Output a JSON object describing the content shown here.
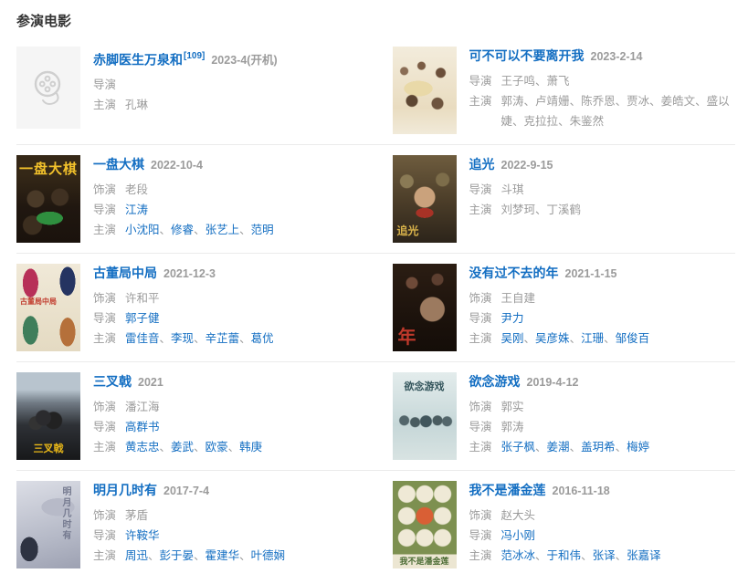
{
  "page": {
    "title": "参演电影"
  },
  "colors": {
    "link": "#136ec2",
    "muted": "#9b9b9b",
    "heading": "#333333",
    "divider": "#ebebeb"
  },
  "separator": "、",
  "icons": {
    "placeholder_poster": "film-reel-icon"
  },
  "movies": [
    {
      "title": "赤脚医生万泉和",
      "ref": "[109]",
      "date": "2023-4(开机)",
      "poster": "placeholder",
      "poster_text": "",
      "credits": [
        {
          "label": "导演",
          "names": []
        },
        {
          "label": "主演",
          "names": [
            {
              "text": "孔琳",
              "link": false
            }
          ]
        }
      ]
    },
    {
      "title": "可不可以不要离开我",
      "ref": "",
      "date": "2023-2-14",
      "poster": "knbly",
      "poster_text": "",
      "credits": [
        {
          "label": "导演",
          "names": [
            {
              "text": "王子鸣",
              "link": false
            },
            {
              "text": "萧飞",
              "link": false
            }
          ]
        },
        {
          "label": "主演",
          "names": [
            {
              "text": "郭涛",
              "link": false
            },
            {
              "text": "卢靖姗",
              "link": false
            },
            {
              "text": "陈乔恩",
              "link": false
            },
            {
              "text": "贾冰",
              "link": false
            },
            {
              "text": "姜皓文",
              "link": false
            },
            {
              "text": "盛以婕",
              "link": false
            },
            {
              "text": "克拉拉",
              "link": false
            },
            {
              "text": "朱鉴然",
              "link": false
            }
          ]
        }
      ]
    },
    {
      "title": "一盘大棋",
      "ref": "",
      "date": "2022-10-4",
      "poster": "ypdq",
      "poster_text": "一盘大棋",
      "credits": [
        {
          "label": "饰演",
          "names": [
            {
              "text": "老段",
              "link": false
            }
          ]
        },
        {
          "label": "导演",
          "names": [
            {
              "text": "江涛",
              "link": true
            }
          ]
        },
        {
          "label": "主演",
          "names": [
            {
              "text": "小沈阳",
              "link": true
            },
            {
              "text": "修睿",
              "link": true
            },
            {
              "text": "张艺上",
              "link": true
            },
            {
              "text": "范明",
              "link": true
            }
          ]
        }
      ]
    },
    {
      "title": "追光",
      "ref": "",
      "date": "2022-9-15",
      "poster": "zg",
      "poster_text": "追光",
      "credits": [
        {
          "label": "导演",
          "names": [
            {
              "text": "斗琪",
              "link": false
            }
          ]
        },
        {
          "label": "主演",
          "names": [
            {
              "text": "刘梦珂",
              "link": false
            },
            {
              "text": "丁溪鹤",
              "link": false
            }
          ]
        }
      ]
    },
    {
      "title": "古董局中局",
      "ref": "",
      "date": "2021-12-3",
      "poster": "gdj",
      "poster_text": "古董局中局",
      "credits": [
        {
          "label": "饰演",
          "names": [
            {
              "text": "许和平",
              "link": false
            }
          ]
        },
        {
          "label": "导演",
          "names": [
            {
              "text": "郭子健",
              "link": true
            }
          ]
        },
        {
          "label": "主演",
          "names": [
            {
              "text": "雷佳音",
              "link": true
            },
            {
              "text": "李现",
              "link": true
            },
            {
              "text": "辛芷蕾",
              "link": true
            },
            {
              "text": "葛优",
              "link": true
            }
          ]
        }
      ]
    },
    {
      "title": "没有过不去的年",
      "ref": "",
      "date": "2021-1-15",
      "poster": "mygb",
      "poster_text": "年",
      "credits": [
        {
          "label": "饰演",
          "names": [
            {
              "text": "王自建",
              "link": false
            }
          ]
        },
        {
          "label": "导演",
          "names": [
            {
              "text": "尹力",
              "link": true
            }
          ]
        },
        {
          "label": "主演",
          "names": [
            {
              "text": "吴刚",
              "link": true
            },
            {
              "text": "吴彦姝",
              "link": true
            },
            {
              "text": "江珊",
              "link": true
            },
            {
              "text": "邹俊百",
              "link": true
            }
          ]
        }
      ]
    },
    {
      "title": "三叉戟",
      "ref": "",
      "date": "2021",
      "poster": "scj",
      "poster_text": "三叉戟",
      "credits": [
        {
          "label": "饰演",
          "names": [
            {
              "text": "潘江海",
              "link": false
            }
          ]
        },
        {
          "label": "导演",
          "names": [
            {
              "text": "高群书",
              "link": true
            }
          ]
        },
        {
          "label": "主演",
          "names": [
            {
              "text": "黄志忠",
              "link": true
            },
            {
              "text": "姜武",
              "link": true
            },
            {
              "text": "欧豪",
              "link": true
            },
            {
              "text": "韩庚",
              "link": true
            }
          ]
        }
      ]
    },
    {
      "title": "欲念游戏",
      "ref": "",
      "date": "2019-4-12",
      "poster": "ynyx",
      "poster_text": "欲念游戏",
      "credits": [
        {
          "label": "饰演",
          "names": [
            {
              "text": "郭实",
              "link": false
            }
          ]
        },
        {
          "label": "导演",
          "names": [
            {
              "text": "郭涛",
              "link": false
            }
          ]
        },
        {
          "label": "主演",
          "names": [
            {
              "text": "张子枫",
              "link": true
            },
            {
              "text": "姜潮",
              "link": true
            },
            {
              "text": "盖玥希",
              "link": true
            },
            {
              "text": "梅婷",
              "link": true
            }
          ]
        }
      ]
    },
    {
      "title": "明月几时有",
      "ref": "",
      "date": "2017-7-4",
      "poster": "myjs",
      "poster_text": "明月几时有",
      "credits": [
        {
          "label": "饰演",
          "names": [
            {
              "text": "茅盾",
              "link": false
            }
          ]
        },
        {
          "label": "导演",
          "names": [
            {
              "text": "许鞍华",
              "link": true
            }
          ]
        },
        {
          "label": "主演",
          "names": [
            {
              "text": "周迅",
              "link": true
            },
            {
              "text": "彭于晏",
              "link": true
            },
            {
              "text": "霍建华",
              "link": true
            },
            {
              "text": "叶德娴",
              "link": true
            }
          ]
        }
      ]
    },
    {
      "title": "我不是潘金莲",
      "ref": "",
      "date": "2016-11-18",
      "poster": "wbpjl",
      "poster_text": "我不是潘金莲",
      "credits": [
        {
          "label": "饰演",
          "names": [
            {
              "text": "赵大头",
              "link": false
            }
          ]
        },
        {
          "label": "导演",
          "names": [
            {
              "text": "冯小刚",
              "link": true
            }
          ]
        },
        {
          "label": "主演",
          "names": [
            {
              "text": "范冰冰",
              "link": true
            },
            {
              "text": "于和伟",
              "link": true
            },
            {
              "text": "张译",
              "link": true
            },
            {
              "text": "张嘉译",
              "link": true
            }
          ]
        }
      ]
    }
  ]
}
